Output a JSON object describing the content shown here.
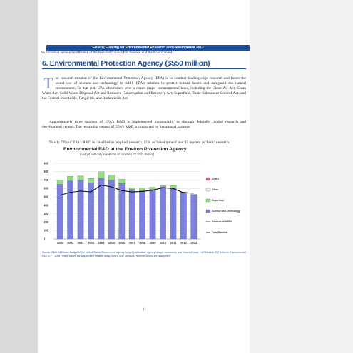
{
  "header": {
    "bar_text": "Federal Funding for Environmental Research and Development 2013",
    "subheader": "An Exclusive service for Affiliates of the National Council For Science and the Environment"
  },
  "section": {
    "title": "6. Environmental Protection Agency ($550 million)"
  },
  "paragraphs": {
    "p1_dropcap": "T",
    "p1_rest": "he research mission of the Environmental Protection Agency (EPA) is to conduct leading-edge research and foster the sound use of science and technology to fulfill EPA's mission to protect human health and safeguard the natural environment. To that end, EPA administers over a dozen major environmental laws, including the Clean Air Act, Clean Water Act, Solid Waste Disposal Act and Resource Conservation and Recovery Act, Superfund, Toxic Substances Control Act, and the Federal Insecticide, Fungicide, and Rodenticide Act.",
    "p2": "Approximately three quarters of EPA's R&D is implemented intramurally, or through federally funded research and development centers. The remaining quarter of EPA's R&D is conducted by extramural partners.",
    "p3": "Nearly 70% of EPA's R&D is classified as 'applied' research, 15% as 'development' and 15 percent as 'basic' research."
  },
  "chart_data": {
    "type": "bar",
    "title": "Environmental R&D at the Environ Protection Agency",
    "subtitle": "(budget authority in millions of constant FY 2011 dollars)",
    "categories": [
      "2000",
      "2001",
      "2002",
      "2003",
      "2004",
      "2005",
      "2006",
      "2007",
      "2008",
      "2009",
      "2010",
      "2011",
      "2012",
      "2013"
    ],
    "ylim": [
      0,
      900
    ],
    "yticks": [
      0,
      100,
      200,
      300,
      400,
      500,
      600,
      700,
      800,
      900
    ],
    "grid": true,
    "legend_position": "right",
    "stacked_series": [
      {
        "name": "Science and Technology",
        "color": "#7b7fe0",
        "values": [
          650,
          690,
          700,
          670,
          720,
          700,
          660,
          590,
          580,
          590,
          620,
          610,
          560,
          530
        ]
      },
      {
        "name": "Superfund",
        "color": "#8ee27a",
        "values": [
          50,
          55,
          50,
          50,
          80,
          60,
          50,
          20,
          25,
          25,
          15,
          25,
          0,
          0
        ]
      },
      {
        "name": "Other",
        "color": "#eeeeee",
        "values": [
          0,
          0,
          0,
          0,
          0,
          0,
          0,
          0,
          0,
          0,
          0,
          0,
          0,
          0
        ]
      },
      {
        "name": "ARRA",
        "color": "#e05aa0",
        "values": [
          0,
          0,
          0,
          0,
          0,
          0,
          0,
          0,
          0,
          0,
          0,
          0,
          0,
          0
        ]
      }
    ],
    "line_series": [
      {
        "name": "Total Nominal",
        "color": "#111111",
        "values": [
          520,
          555,
          570,
          560,
          640,
          620,
          575,
          560,
          565,
          580,
          610,
          600,
          550,
          545
        ]
      }
    ],
    "legend_extra": [
      {
        "name": "Nominal w/ ARRA",
        "color": "#111111"
      }
    ]
  },
  "source_note": "Source: OMB R&D data, Budget of the United States Government, agency budget justification, agency budget documents, and historical data. * ARRA adds $3.7 billion in Environmental R&D in FY 2009. Yearly values are adjusted for inflation using OMB's GDP deflators. Nominal values are unadjusted.",
  "page_number": "1"
}
